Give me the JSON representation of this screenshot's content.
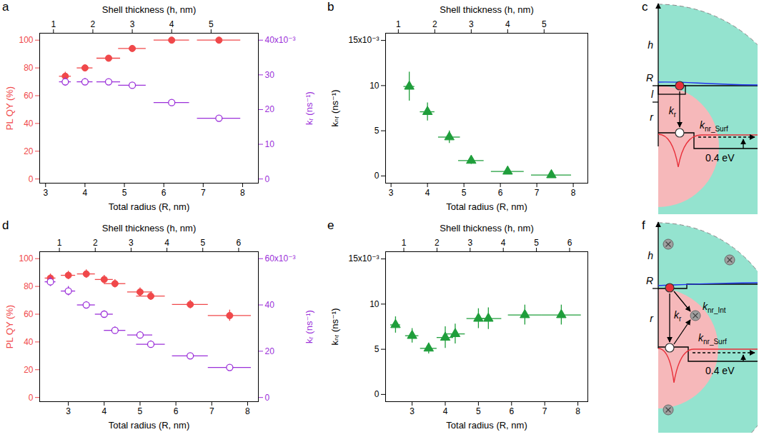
{
  "chart_data": [
    {
      "panel": "a",
      "type": "scatter",
      "xlabel": "Total radius (R, nm)",
      "xlim": [
        2.85,
        8.4
      ],
      "xticks": [
        3,
        4,
        5,
        6,
        7,
        8
      ],
      "x2label": "Shell thickness (h, nm)",
      "x2lim": [
        0.65,
        6.2
      ],
      "x2ticks": [
        1,
        2,
        3,
        4,
        5
      ],
      "ylabel": "PL QY (%)",
      "ylim": [
        -3,
        105
      ],
      "yticks": [
        0,
        20,
        40,
        60,
        80,
        100
      ],
      "y2label": "kᵣ (ns⁻¹)",
      "y2lim": [
        -0.0012,
        0.042
      ],
      "y2ticks": [
        0,
        {
          "value": 0.01,
          "label": "10"
        },
        {
          "value": 0.02,
          "label": "20"
        },
        {
          "value": 0.03,
          "label": "30"
        },
        {
          "value": 0.04,
          "label": "40x10⁻³"
        }
      ],
      "x": [
        3.5,
        4.0,
        4.6,
        5.2,
        6.2,
        7.4
      ],
      "x_err": [
        0.15,
        0.2,
        0.3,
        0.35,
        0.45,
        0.55
      ],
      "series": [
        {
          "color": "#f0484a",
          "marker": "circle",
          "values": [
            74,
            80,
            87,
            94,
            100,
            100
          ],
          "errors": [
            3,
            2,
            2,
            2,
            2,
            2
          ]
        },
        {
          "color": "#9b30d9",
          "marker": "open_circle",
          "axis": "y2",
          "values": [
            0.028,
            0.028,
            0.028,
            0.027,
            0.022,
            0.0175
          ],
          "errors": [
            0.0012,
            0.001,
            0.0008,
            0.0008,
            0.0008,
            0.0008
          ]
        }
      ]
    },
    {
      "panel": "b",
      "type": "scatter",
      "xlabel": "Total radius (R, nm)",
      "xlim": [
        2.85,
        8.4
      ],
      "xticks": [
        3,
        4,
        5,
        6,
        7,
        8
      ],
      "x2label": "Shell thickness (h, nm)",
      "x2lim": [
        0.65,
        6.2
      ],
      "x2ticks": [
        1,
        2,
        3,
        4,
        5
      ],
      "ylabel": "kₙᵣ (ns⁻¹)",
      "ylim": [
        -0.0008,
        0.0158
      ],
      "yticks": [
        0,
        {
          "value": 0.005,
          "label": "5"
        },
        {
          "value": 0.01,
          "label": "10"
        },
        {
          "value": 0.015,
          "label": "15x10⁻³"
        }
      ],
      "x": [
        3.5,
        4.0,
        4.6,
        5.2,
        6.2,
        7.4
      ],
      "x_err": [
        0.15,
        0.2,
        0.3,
        0.35,
        0.45,
        0.55
      ],
      "series": [
        {
          "color": "#1f9e3b",
          "marker": "triangle",
          "values": [
            0.0099,
            0.0071,
            0.0043,
            0.0017,
            0.0005,
            0.0001
          ],
          "errors": [
            0.0016,
            0.001,
            0.0007,
            0.0004,
            0.0003,
            0.0002
          ]
        }
      ]
    },
    {
      "panel": "d",
      "type": "scatter",
      "xlabel": "Total radius (R, nm)",
      "xlim": [
        2.2,
        8.3
      ],
      "xticks": [
        3,
        4,
        5,
        6,
        7,
        8
      ],
      "x2label": "Shell thickness (h, nm)",
      "x2lim": [
        0.45,
        6.55
      ],
      "x2ticks": [
        1,
        2,
        3,
        4,
        5,
        6
      ],
      "ylabel": "PL QY (%)",
      "ylim": [
        -3,
        105
      ],
      "yticks": [
        0,
        20,
        40,
        60,
        80,
        100
      ],
      "y2label": "kᵣ (ns⁻¹)",
      "y2lim": [
        -0.0018,
        0.063
      ],
      "y2ticks": [
        0,
        {
          "value": 0.02,
          "label": "20"
        },
        {
          "value": 0.04,
          "label": "40"
        },
        {
          "value": 0.06,
          "label": "60x10⁻³"
        }
      ],
      "x": [
        2.5,
        3.0,
        3.5,
        4.0,
        4.3,
        5.0,
        5.3,
        6.4,
        7.5
      ],
      "x_err": [
        0.15,
        0.2,
        0.25,
        0.25,
        0.3,
        0.35,
        0.4,
        0.5,
        0.6
      ],
      "series": [
        {
          "color": "#f0484a",
          "marker": "circle",
          "values": [
            86,
            88,
            89,
            85,
            82,
            76,
            73,
            67,
            59
          ],
          "errors": [
            3,
            3,
            3,
            3,
            3,
            3,
            3,
            3,
            4
          ]
        },
        {
          "color": "#9b30d9",
          "marker": "open_circle",
          "axis": "y2",
          "values": [
            0.05,
            0.046,
            0.04,
            0.036,
            0.029,
            0.027,
            0.023,
            0.018,
            0.013
          ],
          "errors": [
            0.002,
            0.002,
            0.0015,
            0.0015,
            0.0015,
            0.0015,
            0.0015,
            0.0012,
            0.0012
          ]
        }
      ]
    },
    {
      "panel": "e",
      "type": "scatter",
      "xlabel": "Total radius (R, nm)",
      "xlim": [
        2.2,
        8.3
      ],
      "xticks": [
        3,
        4,
        5,
        6,
        7,
        8
      ],
      "x2label": "Shell thickness (h, nm)",
      "x2lim": [
        0.45,
        6.55
      ],
      "x2ticks": [
        1,
        2,
        3,
        4,
        5,
        6
      ],
      "ylabel": "kₙᵣ (ns⁻¹)",
      "ylim": [
        -0.0008,
        0.0158
      ],
      "yticks": [
        0,
        {
          "value": 0.005,
          "label": "5"
        },
        {
          "value": 0.01,
          "label": "10"
        },
        {
          "value": 0.015,
          "label": "15x10⁻³"
        }
      ],
      "x": [
        2.5,
        3.0,
        3.5,
        4.0,
        4.3,
        5.0,
        5.3,
        6.4,
        7.5
      ],
      "x_err": [
        0.15,
        0.2,
        0.25,
        0.25,
        0.3,
        0.35,
        0.4,
        0.5,
        0.6
      ],
      "series": [
        {
          "color": "#1f9e3b",
          "marker": "triangle",
          "values": [
            0.0077,
            0.0065,
            0.0051,
            0.0063,
            0.0067,
            0.0084,
            0.0084,
            0.0088,
            0.0088
          ],
          "errors": [
            0.0009,
            0.0008,
            0.0006,
            0.0012,
            0.0011,
            0.0011,
            0.0012,
            0.0011,
            0.0011
          ]
        }
      ]
    }
  ],
  "diagrams": [
    {
      "panel": "c",
      "labels": {
        "h": "h",
        "R": "R",
        "l": "l",
        "r": "r",
        "kr": {
          "text": "k",
          "sub": "r"
        },
        "knr_surf": {
          "text": "k",
          "sub": "nr_Surf"
        },
        "gap": "0.4 eV"
      }
    },
    {
      "panel": "f",
      "labels": {
        "h": "h",
        "R": "R",
        "r": "r",
        "kr": {
          "text": "k",
          "sub": "r"
        },
        "knr_int": {
          "text": "k",
          "sub": "nr_Int"
        },
        "knr_surf": {
          "text": "k",
          "sub": "nr_Surf"
        },
        "gap": "0.4 eV"
      }
    }
  ]
}
